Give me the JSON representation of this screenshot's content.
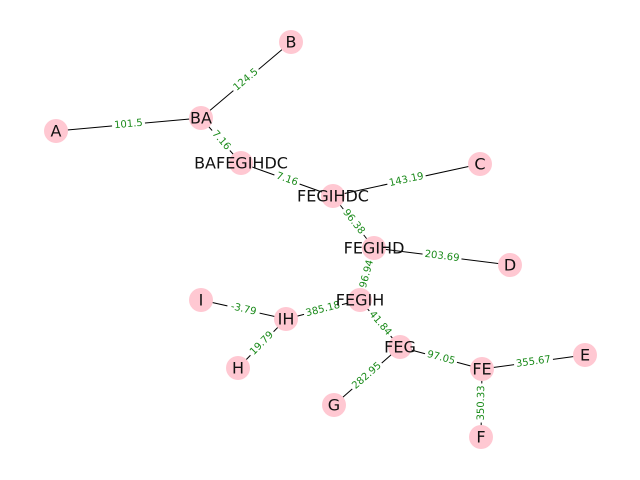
{
  "colors": {
    "node_fill": "#ffc8d2",
    "edge_stroke": "#000000",
    "edge_label": "#1a8a1a",
    "background": "#ffffff"
  },
  "nodes": [
    {
      "id": "A",
      "label": "A"
    },
    {
      "id": "B",
      "label": "B"
    },
    {
      "id": "BA",
      "label": "BA"
    },
    {
      "id": "BAFEGIHDC",
      "label": "BAFEGIHDC"
    },
    {
      "id": "C",
      "label": "C"
    },
    {
      "id": "FEGIHDC",
      "label": "FEGIHDC"
    },
    {
      "id": "FEGIHD",
      "label": "FEGIHD"
    },
    {
      "id": "D",
      "label": "D"
    },
    {
      "id": "FEGIH",
      "label": "FEGIH"
    },
    {
      "id": "I",
      "label": "I"
    },
    {
      "id": "IH",
      "label": "IH"
    },
    {
      "id": "H",
      "label": "H"
    },
    {
      "id": "FEG",
      "label": "FEG"
    },
    {
      "id": "FE",
      "label": "FE"
    },
    {
      "id": "E",
      "label": "E"
    },
    {
      "id": "G",
      "label": "G"
    },
    {
      "id": "F",
      "label": "F"
    }
  ],
  "edges": [
    {
      "source": "A",
      "target": "BA",
      "label": "101.5"
    },
    {
      "source": "BA",
      "target": "B",
      "label": "124.5"
    },
    {
      "source": "BA",
      "target": "BAFEGIHDC",
      "label": "7.16"
    },
    {
      "source": "BAFEGIHDC",
      "target": "FEGIHDC",
      "label": "7.16"
    },
    {
      "source": "FEGIHDC",
      "target": "C",
      "label": "143.19"
    },
    {
      "source": "FEGIHDC",
      "target": "FEGIHD",
      "label": "96.38"
    },
    {
      "source": "FEGIHD",
      "target": "D",
      "label": "203.69"
    },
    {
      "source": "FEGIHD",
      "target": "FEGIH",
      "label": "96.94"
    },
    {
      "source": "FEGIH",
      "target": "IH",
      "label": "385.18"
    },
    {
      "source": "FEGIH",
      "target": "FEG",
      "label": "41.84"
    },
    {
      "source": "I",
      "target": "IH",
      "label": "-3.79"
    },
    {
      "source": "IH",
      "target": "H",
      "label": "19.79"
    },
    {
      "source": "FEG",
      "target": "FE",
      "label": "97.05"
    },
    {
      "source": "FEG",
      "target": "G",
      "label": "282.95"
    },
    {
      "source": "FE",
      "target": "E",
      "label": "355.67"
    },
    {
      "source": "FE",
      "target": "F",
      "label": "350.33"
    }
  ]
}
